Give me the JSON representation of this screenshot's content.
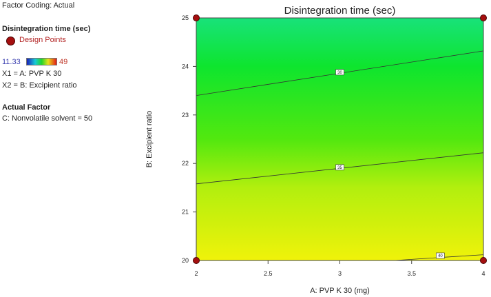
{
  "legend": {
    "factor_coding": "Factor Coding: Actual",
    "response_title": "Disintegration time (sec)",
    "design_points_label": "Design Points",
    "range_min": "11.33",
    "range_max": "49",
    "x1_label": "X1 = A: PVP K 30",
    "x2_label": "X2 = B: Excipient ratio",
    "actual_factor_heading": "Actual Factor",
    "actual_factor_value": "C: Nonvolatile solvent  = 50",
    "colors": {
      "range_min": "#3a3fb0",
      "range_max": "#c0392b",
      "design_point": "#a50f0f"
    }
  },
  "chart_data": {
    "type": "contour",
    "title": "Disintegration time (sec)",
    "xlabel": "A: PVP K 30 (mg)",
    "ylabel": "B: Excipient ratio",
    "xlim": [
      2,
      4
    ],
    "ylim": [
      20,
      25
    ],
    "xticks": [
      "2",
      "2.5",
      "3",
      "3.5",
      "4"
    ],
    "yticks": [
      "20",
      "21",
      "22",
      "23",
      "24",
      "25"
    ],
    "contours": [
      {
        "label": "30",
        "points": [
          [
            2,
            23.4
          ],
          [
            4,
            24.32
          ]
        ],
        "label_at": [
          3,
          23.88
        ]
      },
      {
        "label": "35",
        "points": [
          [
            2,
            21.58
          ],
          [
            4,
            22.22
          ]
        ],
        "label_at": [
          3,
          21.92
        ]
      },
      {
        "label": "40",
        "points": [
          [
            3.38,
            20.0
          ],
          [
            4,
            20.12
          ]
        ],
        "label_at": [
          3.7,
          20.1
        ]
      }
    ],
    "design_points": [
      [
        2,
        20
      ],
      [
        2,
        25
      ],
      [
        4,
        20
      ],
      [
        4,
        25
      ]
    ],
    "fill_gradient": [
      {
        "y": 25,
        "color": "#18e27a"
      },
      {
        "y": 24,
        "color": "#0ee52e"
      },
      {
        "y": 22.5,
        "color": "#52e80f"
      },
      {
        "y": 21.5,
        "color": "#b2ef0e"
      },
      {
        "y": 20,
        "color": "#f0f20a"
      }
    ]
  }
}
